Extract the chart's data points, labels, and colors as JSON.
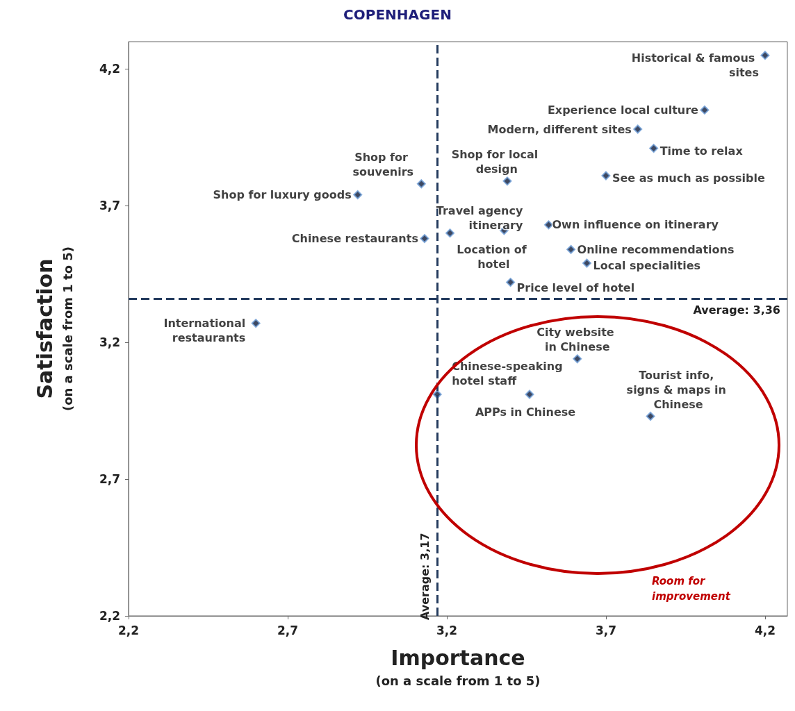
{
  "chart_data": {
    "type": "scatter",
    "title": "COPENHAGEN",
    "xlabel": "Importance\n(on a scale from 1 to 5)",
    "ylabel": "Satisfaction\n(on a scale from 1 to 5)",
    "x": [
      4.2,
      4.01,
      3.8,
      3.85,
      3.7,
      3.39,
      3.12,
      2.92,
      3.38,
      3.21,
      3.52,
      3.13,
      3.59,
      3.64,
      3.4,
      2.6,
      3.61,
      3.17,
      3.46,
      3.84
    ],
    "series": [
      {
        "color": "#0d1a3a",
        "values": [
          4.25,
          4.05,
          3.98,
          3.91,
          3.81,
          3.79,
          3.78,
          3.74,
          3.61,
          3.6,
          3.63,
          3.58,
          3.54,
          3.49,
          3.42,
          3.27,
          3.14,
          3.01,
          3.01,
          2.93
        ]
      }
    ],
    "marker": "diamond",
    "grid": false,
    "xlim": [
      2.2,
      4.27
    ],
    "ylim": [
      2.2,
      4.3
    ],
    "xticks": [
      {
        "value": 2.2,
        "label": "2,2"
      },
      {
        "value": 2.7,
        "label": "2,7"
      },
      {
        "value": 3.2,
        "label": "3,2"
      },
      {
        "value": 3.7,
        "label": "3,7"
      },
      {
        "value": 4.2,
        "label": "4,2"
      }
    ],
    "yticks": [
      {
        "value": 2.2,
        "label": "2,2"
      },
      {
        "value": 2.7,
        "label": "2,7"
      },
      {
        "value": 3.2,
        "label": "3,2"
      },
      {
        "value": 3.7,
        "label": "3,7"
      },
      {
        "value": 4.2,
        "label": "4,2"
      }
    ],
    "ref_lines": [
      {
        "axis": "x",
        "value": 3.17,
        "label": "Average: 3,17",
        "color": "#243b5e",
        "line_style": "dashed"
      },
      {
        "axis": "y",
        "value": 3.36,
        "label": "Average: 3,36",
        "color": "#243b5e",
        "line_style": "dashed"
      }
    ],
    "annotations": [
      {
        "text": "Historical & famous sites",
        "x": 4.2,
        "y": 4.25
      },
      {
        "text": "Experience local culture",
        "x": 4.01,
        "y": 4.05
      },
      {
        "text": "Modern, different sites",
        "x": 3.8,
        "y": 3.98
      },
      {
        "text": "Time to relax",
        "x": 3.85,
        "y": 3.91
      },
      {
        "text": "See as much as possible",
        "x": 3.7,
        "y": 3.81
      },
      {
        "text": "Shop for local design",
        "x": 3.39,
        "y": 3.79
      },
      {
        "text": "Shop for souvenirs",
        "x": 3.12,
        "y": 3.78
      },
      {
        "text": "Shop for luxury goods",
        "x": 2.92,
        "y": 3.74
      },
      {
        "text": "Travel agency itinerary",
        "x": 3.38,
        "y": 3.61
      },
      {
        "text": "Location of hotel",
        "x": 3.21,
        "y": 3.6
      },
      {
        "text": "Own influence on itinerary",
        "x": 3.52,
        "y": 3.63
      },
      {
        "text": "Chinese restaurants",
        "x": 3.13,
        "y": 3.58
      },
      {
        "text": "Online recommendations",
        "x": 3.59,
        "y": 3.54
      },
      {
        "text": "Local specialities",
        "x": 3.64,
        "y": 3.49
      },
      {
        "text": "Price level of hotel",
        "x": 3.4,
        "y": 3.42
      },
      {
        "text": "International restaurants",
        "x": 2.6,
        "y": 3.27
      },
      {
        "text": "City website in Chinese",
        "x": 3.61,
        "y": 3.14
      },
      {
        "text": "Chinese-speaking hotel staff",
        "x": 3.17,
        "y": 3.01
      },
      {
        "text": "APPs in Chinese",
        "x": 3.46,
        "y": 3.01
      },
      {
        "text": "Tourist info, signs & maps in Chinese",
        "x": 3.84,
        "y": 2.93
      },
      "Room for improvement"
    ]
  }
}
